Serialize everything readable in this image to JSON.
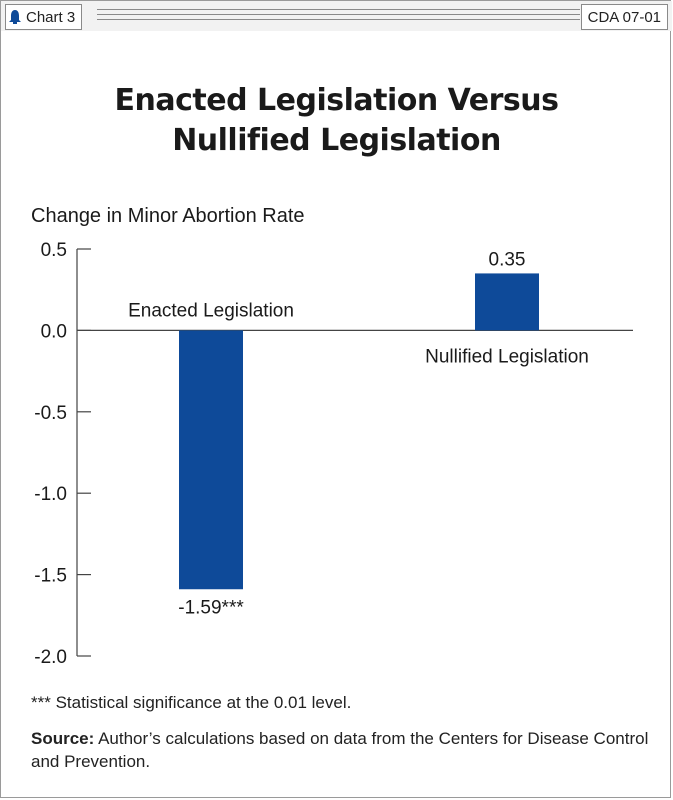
{
  "header": {
    "chart_label": "Chart 3",
    "code": "CDA 07-01"
  },
  "colors": {
    "bar": "#0e4a99",
    "axis": "#444444",
    "header_bg": "#f2f2f2"
  },
  "chart_data": {
    "type": "bar",
    "title_line1": "Enacted Legislation Versus",
    "title_line2": "Nullified Legislation",
    "ylabel": "Change in Minor Abortion Rate",
    "ylim": [
      -2.0,
      0.5
    ],
    "yticks": [
      "0.5",
      "0.0",
      "-0.5",
      "-1.0",
      "-1.5",
      "-2.0"
    ],
    "ytick_values": [
      0.5,
      0.0,
      -0.5,
      -1.0,
      -1.5,
      -2.0
    ],
    "grid": false,
    "legend": "none",
    "categories": [
      "Enacted Legislation",
      "Nullified Legislation"
    ],
    "values": [
      -1.59,
      0.35
    ],
    "data_labels": [
      "-1.59***",
      "0.35"
    ]
  },
  "footnote": "*** Statistical significance at the 0.01 level.",
  "source": {
    "label": "Source:",
    "text": " Author’s calculations based on data from the Centers for Disease Control and Prevention."
  }
}
